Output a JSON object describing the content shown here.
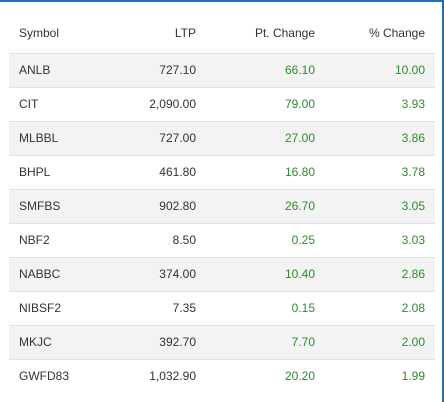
{
  "table": {
    "headers": {
      "symbol": "Symbol",
      "ltp": "LTP",
      "pt_change": "Pt. Change",
      "pct_change": "% Change"
    },
    "rows": [
      {
        "symbol": "ANLB",
        "ltp": "727.10",
        "pt_change": "66.10",
        "pct_change": "10.00"
      },
      {
        "symbol": "CIT",
        "ltp": "2,090.00",
        "pt_change": "79.00",
        "pct_change": "3.93"
      },
      {
        "symbol": "MLBBL",
        "ltp": "727.00",
        "pt_change": "27.00",
        "pct_change": "3.86"
      },
      {
        "symbol": "BHPL",
        "ltp": "461.80",
        "pt_change": "16.80",
        "pct_change": "3.78"
      },
      {
        "symbol": "SMFBS",
        "ltp": "902.80",
        "pt_change": "26.70",
        "pct_change": "3.05"
      },
      {
        "symbol": "NBF2",
        "ltp": "8.50",
        "pt_change": "0.25",
        "pct_change": "3.03"
      },
      {
        "symbol": "NABBC",
        "ltp": "374.00",
        "pt_change": "10.40",
        "pct_change": "2.86"
      },
      {
        "symbol": "NIBSF2",
        "ltp": "7.35",
        "pt_change": "0.15",
        "pct_change": "2.08"
      },
      {
        "symbol": "MKJC",
        "ltp": "392.70",
        "pt_change": "7.70",
        "pct_change": "2.00"
      },
      {
        "symbol": "GWFD83",
        "ltp": "1,032.90",
        "pt_change": "20.20",
        "pct_change": "1.99"
      }
    ]
  },
  "colors": {
    "positive": "#2e8b2e",
    "stripe": "#f3f3f3",
    "border": "#1f6fb2"
  }
}
